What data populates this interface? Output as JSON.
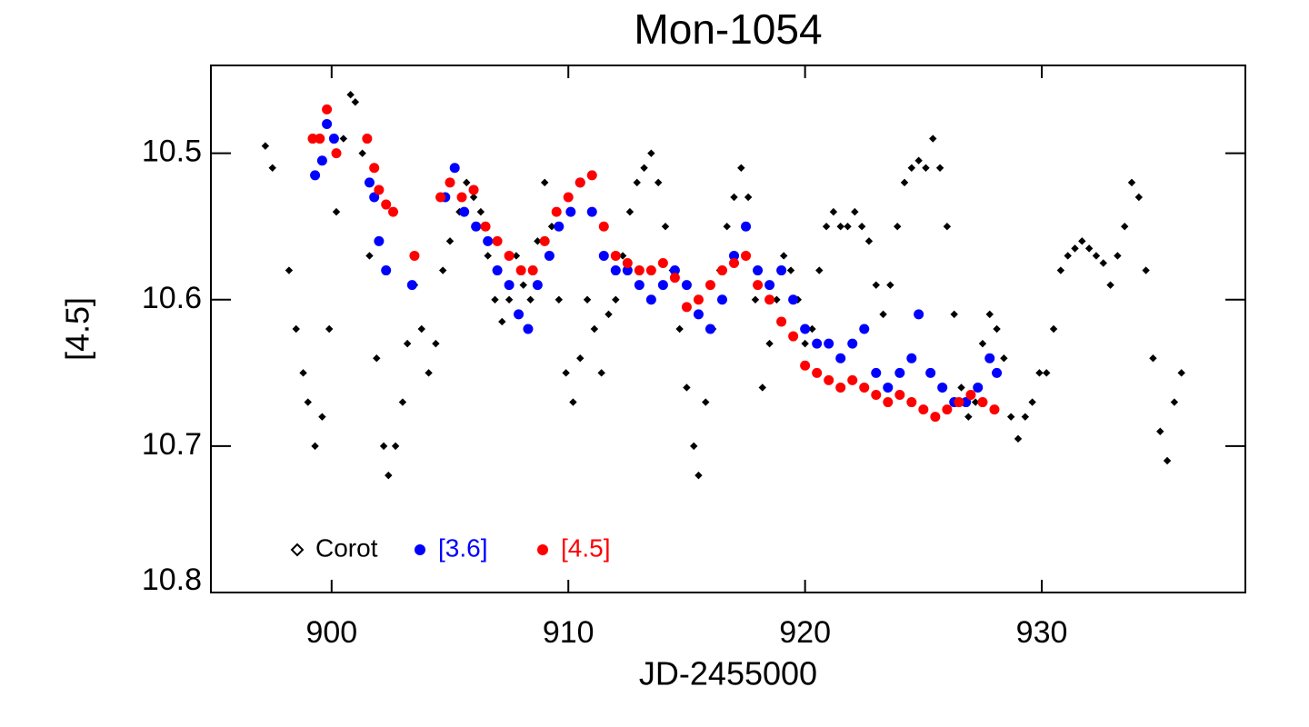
{
  "chart_data": {
    "type": "scatter",
    "title": "Mon-1054",
    "xlabel": "JD-2455000",
    "ylabel": "[4.5]",
    "xlim": [
      894.9,
      938.6
    ],
    "xticks": [
      900,
      910,
      920,
      930
    ],
    "ylim": [
      10.8,
      10.44
    ],
    "yticks": [
      10.5,
      10.6,
      10.7,
      10.8
    ],
    "legend": "lower left",
    "series": [
      {
        "name": "Corot",
        "color": "#000000",
        "x": [
          897.2,
          897.5,
          898.2,
          898.5,
          898.8,
          899.0,
          899.3,
          899.6,
          899.9,
          900.2,
          900.5,
          900.8,
          901.0,
          901.3,
          901.6,
          901.9,
          902.2,
          902.4,
          902.7,
          903.0,
          903.2,
          903.5,
          903.8,
          904.1,
          904.4,
          904.7,
          905.0,
          905.4,
          905.7,
          906.0,
          906.3,
          906.6,
          906.9,
          907.2,
          907.5,
          907.8,
          908.1,
          908.4,
          908.7,
          909.0,
          909.3,
          909.6,
          909.9,
          910.2,
          910.5,
          910.8,
          911.1,
          911.4,
          911.7,
          912.0,
          912.3,
          912.6,
          912.9,
          913.2,
          913.5,
          913.8,
          914.1,
          914.4,
          914.7,
          915.0,
          915.3,
          915.5,
          915.8,
          916.1,
          916.4,
          916.7,
          917.0,
          917.3,
          917.6,
          917.9,
          918.2,
          918.5,
          918.8,
          919.1,
          919.4,
          919.7,
          920.0,
          920.3,
          920.6,
          920.9,
          921.2,
          921.5,
          921.8,
          922.1,
          922.4,
          922.7,
          923.0,
          923.3,
          923.6,
          923.9,
          924.2,
          924.5,
          924.8,
          925.1,
          925.4,
          925.7,
          926.0,
          926.3,
          926.6,
          926.9,
          927.2,
          927.5,
          927.8,
          928.1,
          928.4,
          928.7,
          929.0,
          929.3,
          929.6,
          929.9,
          930.2,
          930.5,
          930.8,
          931.1,
          931.4,
          931.7,
          932.0,
          932.3,
          932.6,
          932.9,
          933.2,
          933.5,
          933.8,
          934.1,
          934.4,
          934.7,
          935.0,
          935.3,
          935.6,
          935.9
        ],
        "values": [
          10.495,
          10.51,
          10.58,
          10.62,
          10.65,
          10.67,
          10.7,
          10.68,
          10.62,
          10.54,
          10.49,
          10.46,
          10.465,
          10.5,
          10.57,
          10.64,
          10.7,
          10.72,
          10.7,
          10.67,
          10.63,
          10.59,
          10.62,
          10.65,
          10.63,
          10.58,
          10.56,
          10.54,
          10.52,
          10.53,
          10.54,
          10.57,
          10.6,
          10.615,
          10.6,
          10.57,
          10.59,
          10.6,
          10.56,
          10.52,
          10.55,
          10.6,
          10.65,
          10.67,
          10.64,
          10.6,
          10.62,
          10.65,
          10.61,
          10.6,
          10.57,
          10.54,
          10.52,
          10.51,
          10.5,
          10.52,
          10.55,
          10.58,
          10.62,
          10.66,
          10.7,
          10.72,
          10.67,
          10.62,
          10.58,
          10.55,
          10.53,
          10.51,
          10.53,
          10.6,
          10.66,
          10.63,
          10.6,
          10.57,
          10.58,
          10.6,
          10.63,
          10.62,
          10.58,
          10.55,
          10.54,
          10.55,
          10.55,
          10.54,
          10.55,
          10.56,
          10.59,
          10.61,
          10.59,
          10.55,
          10.52,
          10.51,
          10.505,
          10.51,
          10.49,
          10.51,
          10.55,
          10.61,
          10.66,
          10.68,
          10.67,
          10.63,
          10.61,
          10.62,
          10.64,
          10.68,
          10.695,
          10.68,
          10.67,
          10.65,
          10.65,
          10.62,
          10.58,
          10.57,
          10.565,
          10.56,
          10.565,
          10.57,
          10.575,
          10.59,
          10.57,
          10.55,
          10.52,
          10.53,
          10.58,
          10.64,
          10.69,
          10.71,
          10.67,
          10.65
        ]
      },
      {
        "name": "[3.6]",
        "color": "#0000ff",
        "x": [
          899.3,
          899.6,
          899.8,
          900.1,
          901.6,
          901.8,
          902.0,
          902.3,
          903.4,
          904.8,
          905.2,
          905.6,
          906.1,
          906.6,
          907.0,
          907.5,
          907.9,
          908.3,
          908.7,
          909.2,
          909.6,
          910.1,
          910.5,
          911.0,
          911.5,
          912.0,
          912.5,
          913.0,
          913.5,
          914.0,
          914.5,
          915.0,
          915.5,
          916.0,
          916.5,
          917.0,
          917.5,
          918.0,
          918.5,
          919.0,
          919.5,
          920.0,
          920.5,
          921.0,
          921.5,
          922.0,
          922.5,
          923.0,
          923.5,
          924.0,
          924.5,
          924.8,
          925.3,
          925.8,
          926.3,
          926.8,
          927.3,
          927.8,
          928.1
        ],
        "values": [
          10.515,
          10.505,
          10.48,
          10.49,
          10.52,
          10.53,
          10.56,
          10.58,
          10.59,
          10.53,
          10.51,
          10.54,
          10.55,
          10.56,
          10.58,
          10.59,
          10.61,
          10.62,
          10.59,
          10.57,
          10.55,
          10.54,
          10.52,
          10.54,
          10.57,
          10.58,
          10.58,
          10.59,
          10.6,
          10.59,
          10.58,
          10.59,
          10.61,
          10.62,
          10.6,
          10.57,
          10.55,
          10.58,
          10.59,
          10.58,
          10.6,
          10.62,
          10.63,
          10.63,
          10.64,
          10.63,
          10.62,
          10.65,
          10.66,
          10.65,
          10.64,
          10.61,
          10.65,
          10.66,
          10.67,
          10.67,
          10.66,
          10.64,
          10.65
        ]
      },
      {
        "name": "[4.5]",
        "color": "#ff0000",
        "x": [
          899.2,
          899.5,
          899.8,
          900.2,
          901.5,
          901.8,
          902.0,
          902.3,
          902.6,
          903.5,
          904.6,
          905.0,
          905.5,
          906.0,
          906.5,
          907.0,
          907.5,
          908.0,
          908.5,
          909.0,
          909.5,
          910.0,
          910.5,
          911.0,
          911.5,
          912.0,
          912.5,
          913.0,
          913.5,
          914.0,
          914.5,
          915.0,
          915.5,
          916.0,
          916.5,
          917.0,
          917.5,
          918.0,
          918.5,
          919.0,
          919.5,
          920.0,
          920.5,
          921.0,
          921.5,
          922.0,
          922.5,
          923.0,
          923.5,
          924.0,
          924.5,
          925.0,
          925.5,
          926.0,
          926.5,
          927.0,
          927.5,
          928.0
        ],
        "values": [
          10.49,
          10.49,
          10.47,
          10.5,
          10.49,
          10.51,
          10.525,
          10.535,
          10.54,
          10.57,
          10.53,
          10.52,
          10.53,
          10.525,
          10.55,
          10.56,
          10.57,
          10.58,
          10.58,
          10.56,
          10.54,
          10.53,
          10.52,
          10.515,
          10.55,
          10.57,
          10.575,
          10.58,
          10.58,
          10.575,
          10.585,
          10.605,
          10.6,
          10.59,
          10.58,
          10.575,
          10.57,
          10.59,
          10.6,
          10.615,
          10.625,
          10.645,
          10.65,
          10.655,
          10.66,
          10.655,
          10.66,
          10.665,
          10.67,
          10.665,
          10.67,
          10.675,
          10.68,
          10.675,
          10.67,
          10.665,
          10.67,
          10.675
        ]
      }
    ]
  }
}
